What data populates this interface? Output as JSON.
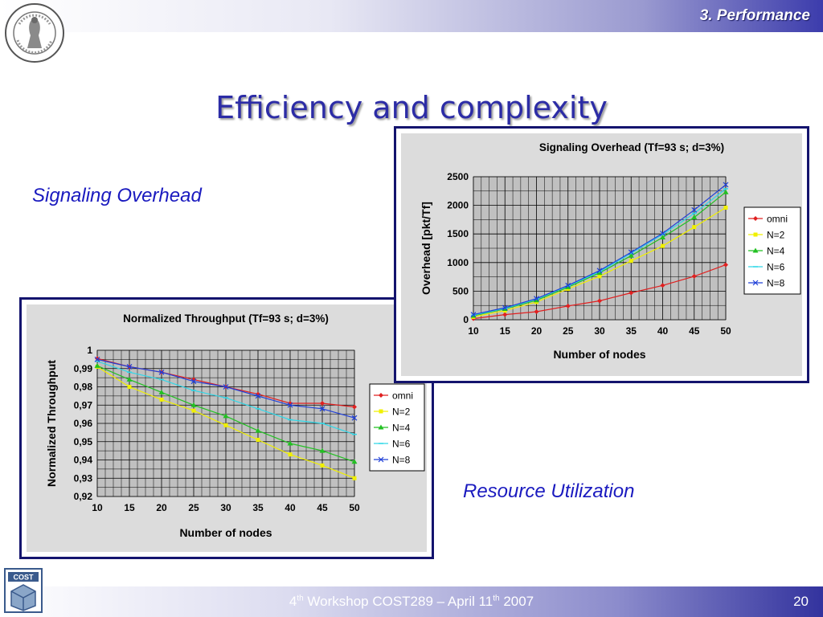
{
  "header": {
    "section": "3. Performance"
  },
  "title": "Efficiency and complexity",
  "labels": {
    "signaling_overhead": "Signaling Overhead",
    "resource_utilization": "Resource Utilization"
  },
  "footer": {
    "ordinal": "4",
    "ordinal_sup": "th",
    "workshop": " Workshop COST289 –  April 11",
    "date_sup": "th",
    "year": " 2007",
    "page": "20"
  },
  "logos": {
    "seal": "university-seal",
    "cost": "cost-logo",
    "cost_text": "COST"
  },
  "colors": {
    "omni": "#e02020",
    "N=2": "#f0f000",
    "N=4": "#22c022",
    "N=6": "#30d8e8",
    "N=8": "#2040d8",
    "plot_bg": "#c0c0c0",
    "title_blue": "#2c2ca6"
  },
  "chart_data": [
    {
      "type": "line",
      "title": "Signaling Overhead (Tf=93 s; d=3%)",
      "xlabel": "Number of nodes",
      "ylabel": "Overhead [pkt/Tf]",
      "x": [
        10,
        15,
        20,
        25,
        30,
        35,
        40,
        45,
        50
      ],
      "xticks": [
        "10",
        "15",
        "20",
        "25",
        "30",
        "35",
        "40",
        "45",
        "50"
      ],
      "yticks": [
        "0",
        "500",
        "1000",
        "1500",
        "2000",
        "2500"
      ],
      "ylim": [
        0,
        2500
      ],
      "grid": true,
      "legend": "right",
      "series": [
        {
          "name": "omni",
          "values": [
            20,
            90,
            140,
            240,
            330,
            470,
            600,
            760,
            960
          ]
        },
        {
          "name": "N=2",
          "values": [
            50,
            160,
            310,
            540,
            760,
            1030,
            1290,
            1620,
            1960
          ]
        },
        {
          "name": "N=4",
          "values": [
            70,
            190,
            340,
            570,
            820,
            1120,
            1440,
            1790,
            2230
          ]
        },
        {
          "name": "N=6",
          "values": [
            80,
            200,
            360,
            590,
            840,
            1160,
            1490,
            1860,
            2290
          ]
        },
        {
          "name": "N=8",
          "values": [
            90,
            210,
            370,
            600,
            860,
            1180,
            1510,
            1920,
            2360
          ]
        }
      ]
    },
    {
      "type": "line",
      "title": "Normalized Throughput (Tf=93 s; d=3%)",
      "xlabel": "Number of nodes",
      "ylabel": "Normalized Throughput",
      "x": [
        10,
        15,
        20,
        25,
        30,
        35,
        40,
        45,
        50
      ],
      "xticks": [
        "10",
        "15",
        "20",
        "25",
        "30",
        "35",
        "40",
        "45",
        "50"
      ],
      "yticks": [
        "0,92",
        "0,93",
        "0,94",
        "0,95",
        "0,96",
        "0,97",
        "0,98",
        "0,99",
        "1"
      ],
      "ylim": [
        0.92,
        1
      ],
      "grid": true,
      "legend": "right",
      "series": [
        {
          "name": "omni",
          "values": [
            0.9955,
            0.991,
            0.988,
            0.984,
            0.98,
            0.976,
            0.971,
            0.971,
            0.969
          ]
        },
        {
          "name": "N=2",
          "values": [
            0.991,
            0.98,
            0.973,
            0.967,
            0.959,
            0.951,
            0.943,
            0.937,
            0.93
          ]
        },
        {
          "name": "N=4",
          "values": [
            0.9915,
            0.984,
            0.977,
            0.97,
            0.964,
            0.956,
            0.949,
            0.945,
            0.939
          ]
        },
        {
          "name": "N=6",
          "values": [
            0.994,
            0.988,
            0.984,
            0.978,
            0.974,
            0.968,
            0.962,
            0.96,
            0.954
          ]
        },
        {
          "name": "N=8",
          "values": [
            0.995,
            0.991,
            0.988,
            0.983,
            0.98,
            0.975,
            0.97,
            0.968,
            0.963
          ]
        }
      ]
    }
  ]
}
